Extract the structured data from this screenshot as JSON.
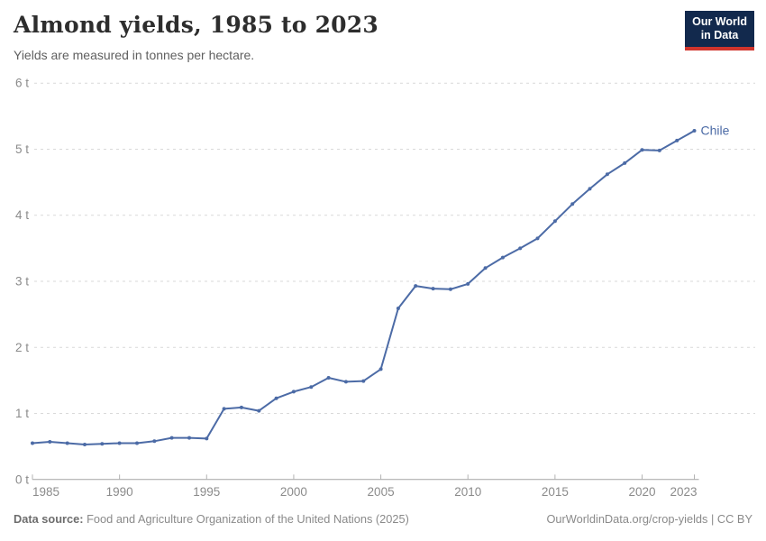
{
  "header": {
    "title": "Almond yields, 1985 to 2023",
    "subtitle": "Yields are measured in tonnes per hectare.",
    "logo": {
      "line1": "Our World",
      "line2": "in Data"
    }
  },
  "footer": {
    "datasource_label": "Data source:",
    "datasource_text": "Food and Agriculture Organization of the United Nations (2025)",
    "link_text": "OurWorldinData.org/crop-yields | CC BY"
  },
  "colors": {
    "line": "#4C6BA6",
    "entity_label": "#4C6BA6",
    "grid": "#d9d9d9",
    "axis": "#a3a3a3",
    "tick_mark": "#b3b3b3",
    "tick_label": "#8b8b8b",
    "logo_bg": "#12294d",
    "logo_stripe": "#d0342c"
  },
  "chart_data": {
    "type": "line",
    "title": "Almond yields, 1985 to 2023",
    "ylabel": "tonnes per hectare",
    "xlabel": "",
    "entity": "Chile",
    "grid": true,
    "xlim": [
      1985,
      2023
    ],
    "ylim": [
      0,
      6
    ],
    "x": [
      1985,
      1986,
      1987,
      1988,
      1989,
      1990,
      1991,
      1992,
      1993,
      1994,
      1995,
      1996,
      1997,
      1998,
      1999,
      2000,
      2001,
      2002,
      2003,
      2004,
      2005,
      2006,
      2007,
      2008,
      2009,
      2010,
      2011,
      2012,
      2013,
      2014,
      2015,
      2016,
      2017,
      2018,
      2019,
      2020,
      2021,
      2022,
      2023
    ],
    "series": [
      {
        "name": "Chile",
        "values": [
          0.55,
          0.57,
          0.55,
          0.53,
          0.54,
          0.55,
          0.55,
          0.58,
          0.63,
          0.63,
          0.62,
          1.07,
          1.09,
          1.04,
          1.23,
          1.33,
          1.4,
          1.54,
          1.48,
          1.49,
          1.67,
          2.59,
          2.93,
          2.89,
          2.88,
          2.96,
          3.2,
          3.36,
          3.5,
          3.65,
          3.91,
          4.17,
          4.4,
          4.62,
          4.79,
          4.99,
          4.98,
          5.13,
          5.28
        ]
      }
    ],
    "x_ticks": [
      {
        "value": 1985,
        "label": "1985"
      },
      {
        "value": 1990,
        "label": "1990"
      },
      {
        "value": 1995,
        "label": "1995"
      },
      {
        "value": 2000,
        "label": "2000"
      },
      {
        "value": 2005,
        "label": "2005"
      },
      {
        "value": 2010,
        "label": "2010"
      },
      {
        "value": 2015,
        "label": "2015"
      },
      {
        "value": 2020,
        "label": "2020"
      },
      {
        "value": 2023,
        "label": "2023"
      }
    ],
    "y_ticks": [
      {
        "value": 0,
        "label": "0 t"
      },
      {
        "value": 1,
        "label": "1 t"
      },
      {
        "value": 2,
        "label": "2 t"
      },
      {
        "value": 3,
        "label": "3 t"
      },
      {
        "value": 4,
        "label": "4 t"
      },
      {
        "value": 5,
        "label": "5 t"
      },
      {
        "value": 6,
        "label": "6 t"
      }
    ]
  }
}
